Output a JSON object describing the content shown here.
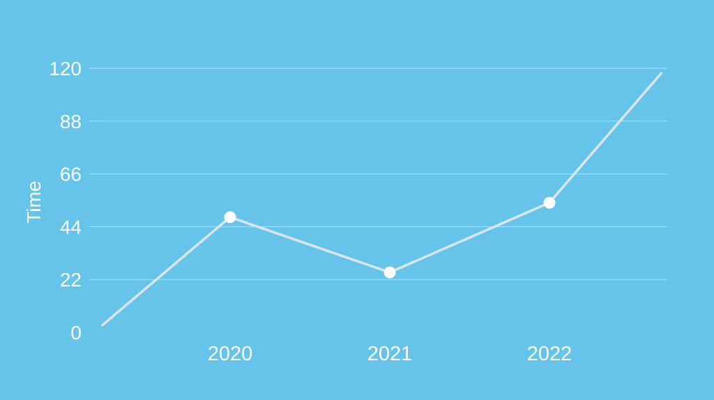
{
  "chart_data": {
    "type": "line",
    "title": "",
    "xlabel": "",
    "ylabel": "Time",
    "ylim": [
      0,
      120
    ],
    "y_ticks": [
      0,
      22,
      44,
      66,
      88,
      120
    ],
    "x_ticks": [
      "2020",
      "2021",
      "2022"
    ],
    "grid": true,
    "legend": "none",
    "colors": {
      "background": "#66c3ea",
      "line": "#dbe6ee",
      "grid": "#a9dcf2",
      "marker": "#ffffff",
      "text": "#ffffff"
    },
    "series": [
      {
        "points": [
          {
            "x": 2019.2,
            "y": 3
          },
          {
            "x": 2020.0,
            "y": 48
          },
          {
            "x": 2021.0,
            "y": 25
          },
          {
            "x": 2022.0,
            "y": 54
          },
          {
            "x": 2022.7,
            "y": 117
          }
        ],
        "marked": [
          2020,
          2021,
          2022
        ]
      }
    ]
  }
}
